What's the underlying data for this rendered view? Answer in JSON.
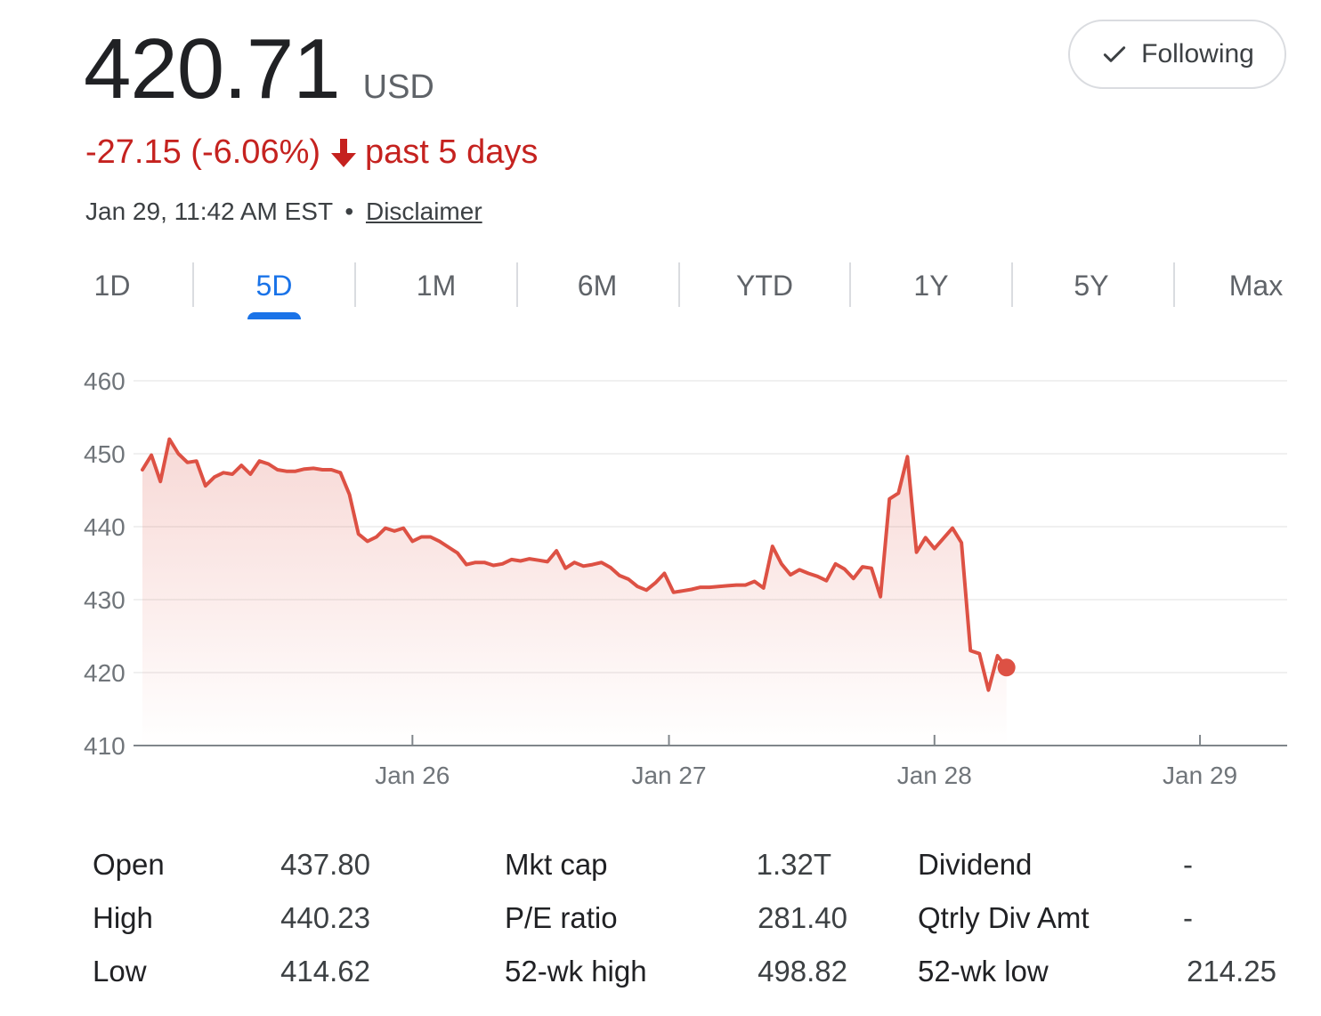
{
  "quote": {
    "price": "420.71",
    "currency": "USD",
    "change": "-27.15 (-6.06%)",
    "period": "past 5 days",
    "timestamp": "Jan 29, 11:42 AM EST",
    "separator": "•",
    "disclaimer": "Disclaimer",
    "color_down": "#c5221f"
  },
  "follow_button": {
    "label": "Following",
    "icon": "check-icon"
  },
  "ranges": {
    "tabs": [
      "1D",
      "5D",
      "1M",
      "6M",
      "YTD",
      "1Y",
      "5Y",
      "Max"
    ],
    "selected": "5D",
    "accent": "#1a73e8"
  },
  "chart_data": {
    "type": "area",
    "line_color": "#dd5144",
    "ylim": [
      410,
      460
    ],
    "yticks": [
      460,
      450,
      440,
      430,
      420,
      410
    ],
    "xlim": [
      0,
      126
    ],
    "xticks": [
      {
        "label": "Jan 26",
        "x": 30
      },
      {
        "label": "Jan 27",
        "x": 58.5
      },
      {
        "label": "Jan 28",
        "x": 88
      },
      {
        "label": "Jan 29",
        "x": 117.5
      }
    ],
    "grid": true,
    "values": [
      447.8,
      449.8,
      446.2,
      452.0,
      450.0,
      448.8,
      449.0,
      445.6,
      446.8,
      447.4,
      447.2,
      448.4,
      447.2,
      449.0,
      448.6,
      447.8,
      447.6,
      447.6,
      447.9,
      448.0,
      447.8,
      447.8,
      447.4,
      444.4,
      439.0,
      438.0,
      438.6,
      439.8,
      439.4,
      439.8,
      438.0,
      438.6,
      438.6,
      438.0,
      437.2,
      436.4,
      434.8,
      435.1,
      435.1,
      434.7,
      434.9,
      435.5,
      435.3,
      435.6,
      435.4,
      435.2,
      436.7,
      434.3,
      435.1,
      434.6,
      434.8,
      435.1,
      434.4,
      433.3,
      432.8,
      431.8,
      431.3,
      432.3,
      433.6,
      431.0,
      431.2,
      431.4,
      431.7,
      431.7,
      431.8,
      431.9,
      432.0,
      432.0,
      432.5,
      431.6,
      437.3,
      434.9,
      433.4,
      434.1,
      433.6,
      433.2,
      432.6,
      434.9,
      434.2,
      432.9,
      434.5,
      434.3,
      430.4,
      443.8,
      444.6,
      449.6,
      436.5,
      438.5,
      437.0,
      438.4,
      439.8,
      437.8,
      423.0,
      422.6,
      417.6,
      422.3,
      420.7
    ]
  },
  "stats": [
    {
      "label": "Open",
      "value": "437.80"
    },
    {
      "label": "High",
      "value": "440.23"
    },
    {
      "label": "Low",
      "value": "414.62"
    },
    {
      "label": "Mkt cap",
      "value": "1.32T"
    },
    {
      "label": "P/E ratio",
      "value": "281.40"
    },
    {
      "label": "52-wk high",
      "value": "498.82"
    },
    {
      "label": "Dividend",
      "value": "-"
    },
    {
      "label": "Qtrly Div Amt",
      "value": "-"
    },
    {
      "label": "52-wk low",
      "value": "214.25"
    }
  ]
}
